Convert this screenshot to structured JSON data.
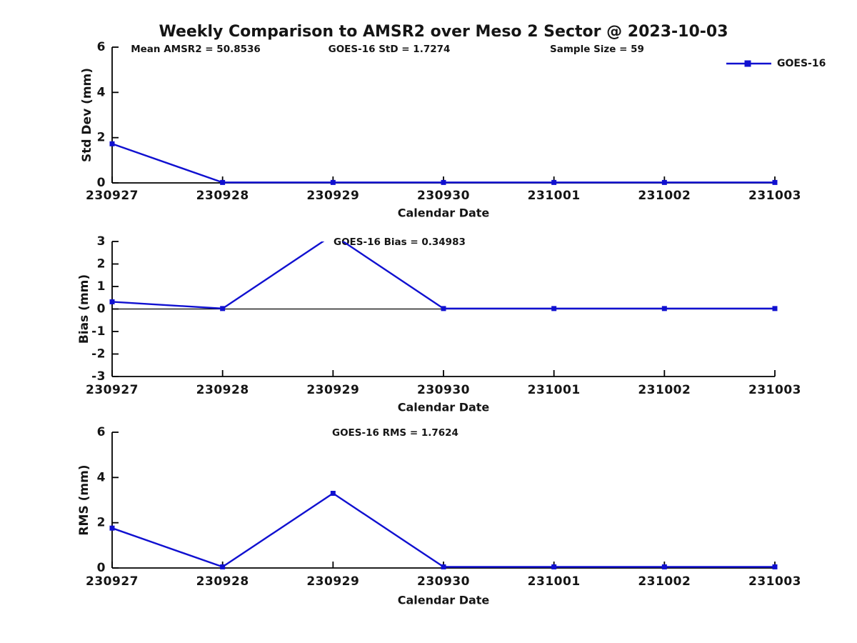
{
  "title": "Weekly Comparison to AMSR2 over Meso 2 Sector @ 2023-10-03",
  "colors": {
    "series_line": "#1010d0",
    "axis": "#000000",
    "text": "#151515",
    "background": "#ffffff"
  },
  "legend": {
    "label": "GOES-16",
    "position": "top-right"
  },
  "chart_data": [
    {
      "type": "line",
      "name": "std-dev",
      "ylabel": "Std Dev (mm)",
      "xlabel": "Calendar Date",
      "annotations": [
        "Mean AMSR2 = 50.8536",
        "GOES-16 StD = 1.7274",
        "Sample Size = 59"
      ],
      "categories": [
        "230927",
        "230928",
        "230929",
        "230930",
        "231001",
        "231002",
        "231003"
      ],
      "series": [
        {
          "name": "GOES-16",
          "values": [
            1.7274,
            0.02,
            0.02,
            0.02,
            0.02,
            0.02,
            0.02
          ]
        }
      ],
      "ylim": [
        0,
        6
      ],
      "yticks": [
        0,
        2,
        4,
        6
      ],
      "grid": false,
      "legend": true,
      "zero_line": false
    },
    {
      "type": "line",
      "name": "bias",
      "ylabel": "Bias (mm)",
      "xlabel": "Calendar Date",
      "annotations": [
        "GOES-16 Bias  = 0.34983"
      ],
      "categories": [
        "230927",
        "230928",
        "230929",
        "230930",
        "231001",
        "231002",
        "231003"
      ],
      "series": [
        {
          "name": "GOES-16",
          "values": [
            0.32,
            0.02,
            3.3,
            0.02,
            0.02,
            0.02,
            0.02
          ]
        }
      ],
      "ylim": [
        -3,
        3
      ],
      "yticks": [
        -3,
        -2,
        -1,
        0,
        1,
        2,
        3
      ],
      "grid": false,
      "legend": false,
      "zero_line": true,
      "note": "peak value at 230929 exceeds ylim and is clipped at y=3"
    },
    {
      "type": "line",
      "name": "rms",
      "ylabel": "RMS (mm)",
      "xlabel": "Calendar Date",
      "annotations": [
        "GOES-16 RMS = 1.7624"
      ],
      "categories": [
        "230927",
        "230928",
        "230929",
        "230930",
        "231001",
        "231002",
        "231003"
      ],
      "series": [
        {
          "name": "GOES-16",
          "values": [
            1.7624,
            0.05,
            3.3,
            0.05,
            0.05,
            0.05,
            0.05
          ]
        }
      ],
      "ylim": [
        0,
        6
      ],
      "yticks": [
        0,
        2,
        4,
        6
      ],
      "grid": false,
      "legend": false,
      "zero_line": false
    }
  ]
}
